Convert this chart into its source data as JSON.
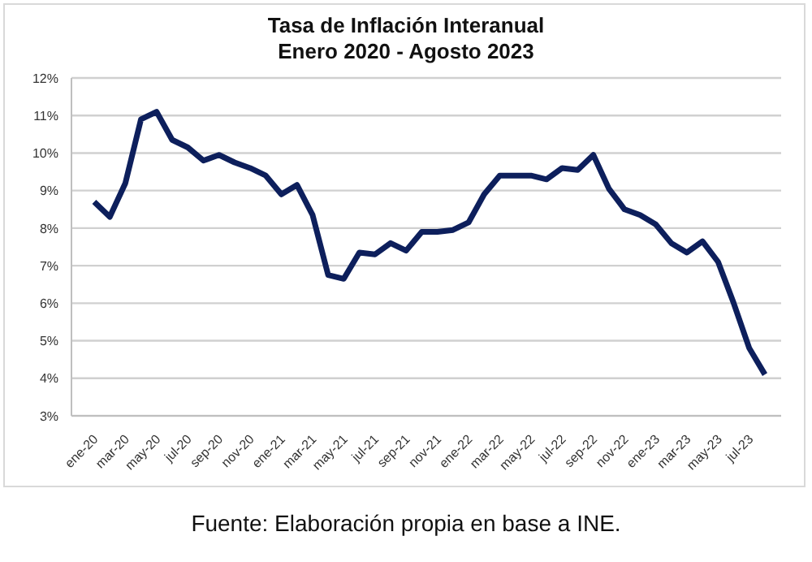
{
  "chart_data": {
    "type": "line",
    "title": "Tasa de Inflación Interanual",
    "subtitle": "Enero 2020 - Agosto 2023",
    "categories": [
      "ene-20",
      null,
      "mar-20",
      null,
      "may-20",
      null,
      "jul-20",
      null,
      "sep-20",
      null,
      "nov-20",
      null,
      "ene-21",
      null,
      "mar-21",
      null,
      "may-21",
      null,
      "jul-21",
      null,
      "sep-21",
      null,
      "nov-21",
      null,
      "ene-22",
      null,
      "mar-22",
      null,
      "may-22",
      null,
      "jul-22",
      null,
      "sep-22",
      null,
      "nov-22",
      null,
      "ene-23",
      null,
      "mar-23",
      null,
      "may-23",
      null,
      "jul-23",
      null
    ],
    "series": [
      {
        "color": "#0d1f5c",
        "values": [
          8.7,
          8.3,
          9.2,
          10.9,
          11.1,
          10.35,
          10.15,
          9.8,
          9.95,
          9.75,
          9.6,
          9.4,
          8.9,
          9.15,
          8.35,
          6.75,
          6.65,
          7.35,
          7.3,
          7.6,
          7.4,
          7.9,
          7.9,
          7.95,
          8.15,
          8.9,
          9.4,
          9.4,
          9.4,
          9.3,
          9.6,
          9.55,
          9.95,
          9.05,
          8.5,
          8.35,
          8.1,
          7.6,
          7.35,
          7.65,
          7.1,
          6.0,
          4.8,
          4.1
        ]
      }
    ],
    "ylim": [
      3,
      12
    ],
    "yticks": [
      {
        "value": 3,
        "label": "3%"
      },
      {
        "value": 4,
        "label": "4%"
      },
      {
        "value": 5,
        "label": "5%"
      },
      {
        "value": 6,
        "label": "6%"
      },
      {
        "value": 7,
        "label": "7%"
      },
      {
        "value": 8,
        "label": "8%"
      },
      {
        "value": 9,
        "label": "9%"
      },
      {
        "value": 10,
        "label": "10%"
      },
      {
        "value": 11,
        "label": "11%"
      },
      {
        "value": 12,
        "label": "12%"
      }
    ],
    "grid": "y",
    "legend": false,
    "marker": "none",
    "line_style": "solid",
    "annotations": [
      "Fuente: Elaboración propia en base a INE."
    ]
  }
}
